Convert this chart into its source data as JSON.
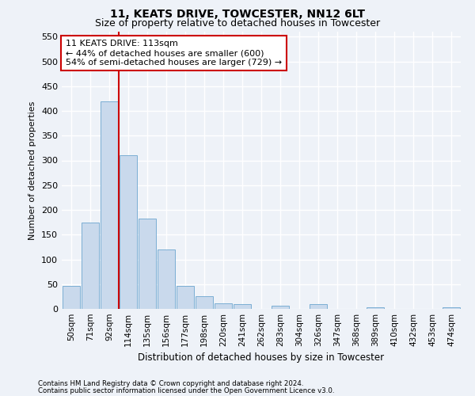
{
  "title1": "11, KEATS DRIVE, TOWCESTER, NN12 6LT",
  "title2": "Size of property relative to detached houses in Towcester",
  "xlabel": "Distribution of detached houses by size in Towcester",
  "ylabel": "Number of detached properties",
  "bins": [
    "50sqm",
    "71sqm",
    "92sqm",
    "114sqm",
    "135sqm",
    "156sqm",
    "177sqm",
    "198sqm",
    "220sqm",
    "241sqm",
    "262sqm",
    "283sqm",
    "304sqm",
    "326sqm",
    "347sqm",
    "368sqm",
    "389sqm",
    "410sqm",
    "432sqm",
    "453sqm",
    "474sqm"
  ],
  "values": [
    47,
    175,
    420,
    310,
    183,
    120,
    47,
    25,
    12,
    9,
    0,
    6,
    0,
    9,
    0,
    0,
    3,
    0,
    0,
    0,
    3
  ],
  "bar_color": "#c9d9ec",
  "bar_edge_color": "#7aaed4",
  "vline_color": "#cc0000",
  "vline_x": 2.5,
  "annotation_text": "11 KEATS DRIVE: 113sqm\n← 44% of detached houses are smaller (600)\n54% of semi-detached houses are larger (729) →",
  "annotation_box_color": "#ffffff",
  "annotation_box_edge_color": "#cc0000",
  "footer1": "Contains HM Land Registry data © Crown copyright and database right 2024.",
  "footer2": "Contains public sector information licensed under the Open Government Licence v3.0.",
  "bg_color": "#eef2f8",
  "plot_bg_color": "#eef2f8",
  "grid_color": "#ffffff",
  "ylim": [
    0,
    560
  ],
  "yticks": [
    0,
    50,
    100,
    150,
    200,
    250,
    300,
    350,
    400,
    450,
    500,
    550
  ]
}
